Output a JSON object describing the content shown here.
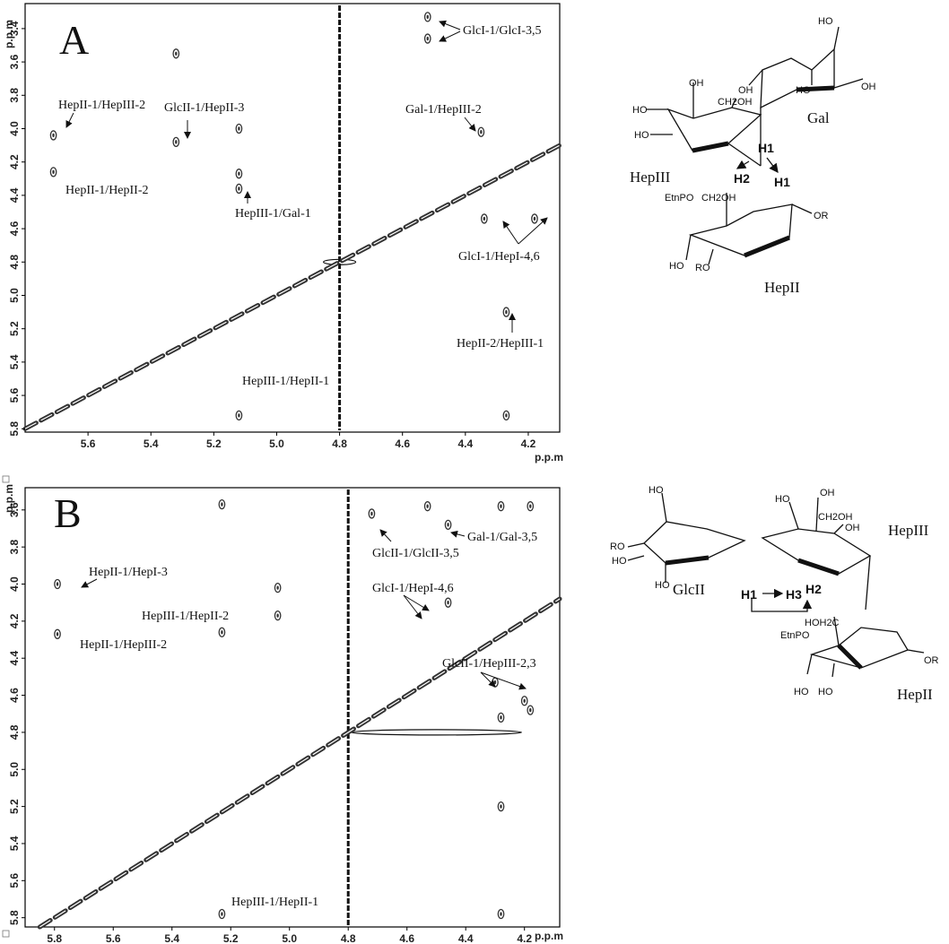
{
  "chart_data": [
    {
      "panel": "A",
      "type": "heatmap",
      "xlabel": "p.p.m",
      "ylabel": "p.p.m",
      "xlim": [
        5.8,
        4.1
      ],
      "ylim": [
        3.25,
        5.82
      ],
      "xticks": [
        "5.6",
        "5.4",
        "5.2",
        "5.0",
        "4.8",
        "4.6",
        "4.4",
        "4.2"
      ],
      "yticks": [
        "3.4",
        "3.6",
        "3.8",
        "4.0",
        "4.2",
        "4.4",
        "4.6",
        "4.8",
        "5.0",
        "5.2",
        "5.4",
        "5.6",
        "5.8"
      ],
      "annotations": [
        {
          "text": "HepII-1/HepIII-2"
        },
        {
          "text": "HepII-1/HepII-2"
        },
        {
          "text": "GlcII-1/HepII-3"
        },
        {
          "text": "HepIII-1/Gal-1"
        },
        {
          "text": "GlcI-1/GlcI-3,5"
        },
        {
          "text": "Gal-1/HepIII-2"
        },
        {
          "text": "GlcI-1/HepI-4,6"
        },
        {
          "text": "HepII-2/HepIII-1"
        },
        {
          "text": "HepIII-1/HepII-1"
        }
      ],
      "cross_peaks": [
        {
          "x": 5.71,
          "y": 4.04
        },
        {
          "x": 5.71,
          "y": 4.26
        },
        {
          "x": 5.32,
          "y": 3.55
        },
        {
          "x": 5.32,
          "y": 4.08
        },
        {
          "x": 5.12,
          "y": 4.0
        },
        {
          "x": 5.12,
          "y": 4.27
        },
        {
          "x": 5.12,
          "y": 4.36
        },
        {
          "x": 4.52,
          "y": 3.33
        },
        {
          "x": 4.52,
          "y": 3.46
        },
        {
          "x": 4.35,
          "y": 4.02
        },
        {
          "x": 4.34,
          "y": 4.54
        },
        {
          "x": 4.18,
          "y": 4.54
        },
        {
          "x": 4.27,
          "y": 5.1
        },
        {
          "x": 4.27,
          "y": 5.72
        },
        {
          "x": 5.12,
          "y": 5.72
        }
      ],
      "diagonal": [
        [
          5.8,
          5.8
        ],
        [
          5.5,
          5.5
        ],
        [
          5.2,
          5.2
        ],
        [
          5.0,
          5.0
        ],
        [
          4.7,
          4.7
        ],
        [
          4.4,
          4.4
        ],
        [
          4.1,
          4.1
        ]
      ]
    },
    {
      "panel": "B",
      "type": "heatmap",
      "xlabel": "p.p.m",
      "ylabel": "p.p.m",
      "xlim": [
        5.9,
        4.08
      ],
      "ylim": [
        3.48,
        5.85
      ],
      "xticks": [
        "5.8",
        "5.6",
        "5.4",
        "5.2",
        "5.0",
        "4.8",
        "4.6",
        "4.4",
        "4.2"
      ],
      "yticks": [
        "3.6",
        "3.8",
        "4.0",
        "4.2",
        "4.4",
        "4.6",
        "4.8",
        "5.0",
        "5.2",
        "5.4",
        "5.6",
        "5.8"
      ],
      "annotations": [
        {
          "text": "HepII-1/HepI-3"
        },
        {
          "text": "HepII-1/HepIII-2"
        },
        {
          "text": "HepIII-1/HepII-2"
        },
        {
          "text": "GlcII-1/GlcII-3,5"
        },
        {
          "text": "Gal-1/Gal-3,5"
        },
        {
          "text": "GlcI-1/HepI-4,6"
        },
        {
          "text": "GlcII-1/HepIII-2,3"
        },
        {
          "text": "HepIII-1/HepII-1"
        }
      ],
      "cross_peaks": [
        {
          "x": 5.79,
          "y": 4.0
        },
        {
          "x": 5.79,
          "y": 4.27
        },
        {
          "x": 5.23,
          "y": 3.57
        },
        {
          "x": 5.23,
          "y": 4.26
        },
        {
          "x": 5.04,
          "y": 4.02
        },
        {
          "x": 5.04,
          "y": 4.17
        },
        {
          "x": 4.72,
          "y": 3.62
        },
        {
          "x": 4.53,
          "y": 3.58
        },
        {
          "x": 4.46,
          "y": 3.68
        },
        {
          "x": 4.46,
          "y": 4.1
        },
        {
          "x": 4.3,
          "y": 4.53
        },
        {
          "x": 4.2,
          "y": 4.63
        },
        {
          "x": 4.18,
          "y": 4.68
        },
        {
          "x": 4.28,
          "y": 4.72
        },
        {
          "x": 4.28,
          "y": 5.2
        },
        {
          "x": 4.28,
          "y": 5.78
        },
        {
          "x": 5.23,
          "y": 5.78
        },
        {
          "x": 4.28,
          "y": 3.58
        },
        {
          "x": 4.18,
          "y": 3.58
        }
      ],
      "diagonal": [
        [
          5.85,
          5.85
        ],
        [
          5.6,
          5.6
        ],
        [
          5.3,
          5.3
        ],
        [
          5.0,
          5.0
        ],
        [
          4.7,
          4.7
        ],
        [
          4.4,
          4.4
        ],
        [
          4.08,
          4.08
        ]
      ]
    }
  ],
  "panels": {
    "A": {
      "letter": "A"
    },
    "B": {
      "letter": "B"
    }
  },
  "structures": {
    "top": {
      "residues": [
        "Gal",
        "HepIII",
        "HepII"
      ],
      "protons": [
        "H1",
        "H2",
        "H1"
      ],
      "groups": [
        "HO",
        "HO",
        "OH",
        "OH",
        "OH",
        "HO",
        "CH2OH",
        "HO",
        "CH2OH",
        "EtnPO",
        "OR",
        "HO",
        "RO"
      ]
    },
    "bottom": {
      "residues": [
        "GlcII",
        "HepIII",
        "HepII"
      ],
      "protons": [
        "H1",
        "H3",
        "H2"
      ],
      "groups": [
        "HO",
        "RO",
        "HO",
        "HO",
        "OH",
        "HO",
        "CH2OH",
        "OH",
        "HOH2C",
        "EtnPO",
        "OR",
        "HO",
        "HO"
      ]
    }
  },
  "colors": {
    "ink": "#111111",
    "contour": "#333333",
    "frame": "#000000"
  }
}
